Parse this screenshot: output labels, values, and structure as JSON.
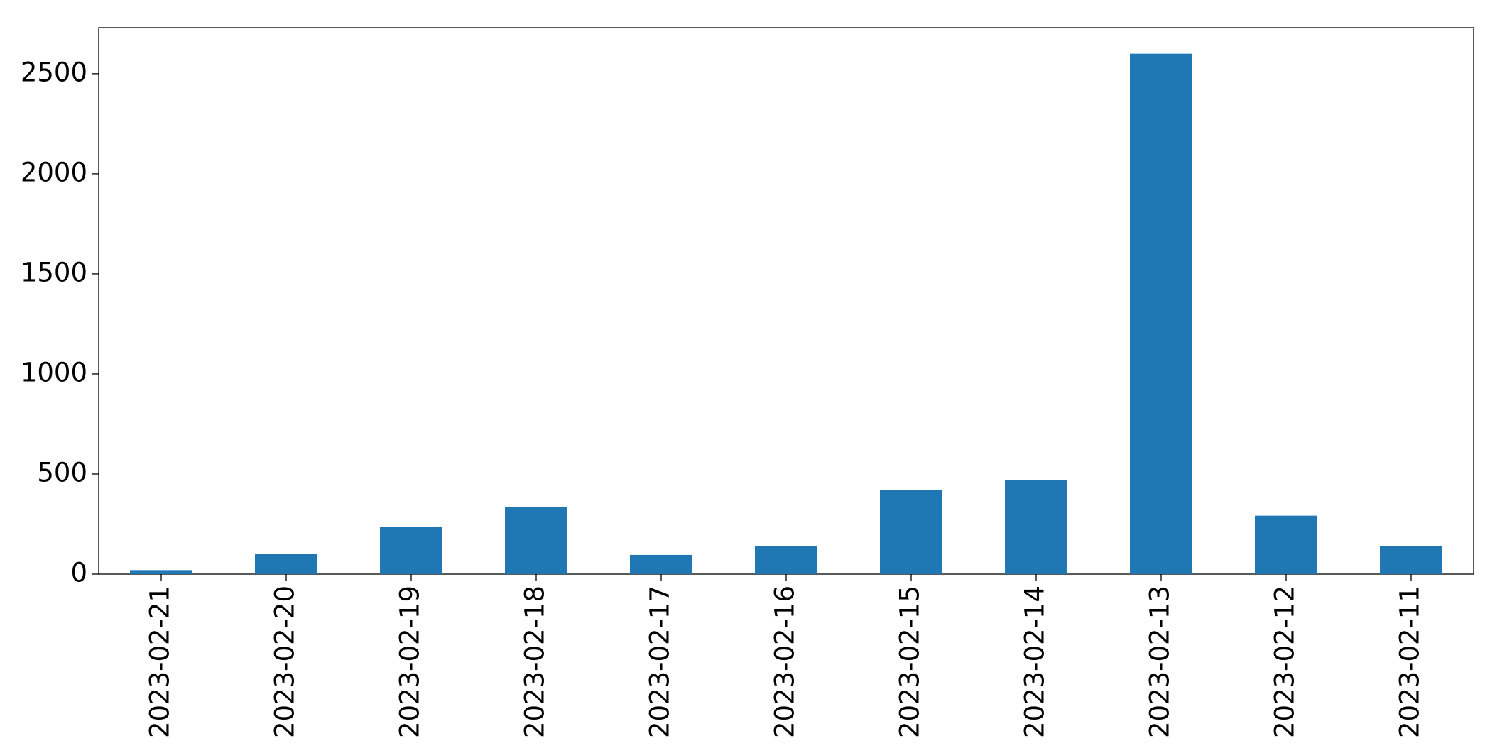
{
  "chart_data": {
    "type": "bar",
    "categories": [
      "2023-02-21",
      "2023-02-20",
      "2023-02-19",
      "2023-02-18",
      "2023-02-17",
      "2023-02-16",
      "2023-02-15",
      "2023-02-14",
      "2023-02-13",
      "2023-02-12",
      "2023-02-11"
    ],
    "values": [
      20,
      100,
      235,
      335,
      96,
      140,
      421,
      469,
      2600,
      292,
      140
    ],
    "color": "#1f77b4",
    "ylim": [
      0,
      2730
    ],
    "yticks": [
      0,
      500,
      1000,
      1500,
      2000,
      2500
    ],
    "grid": false
  }
}
